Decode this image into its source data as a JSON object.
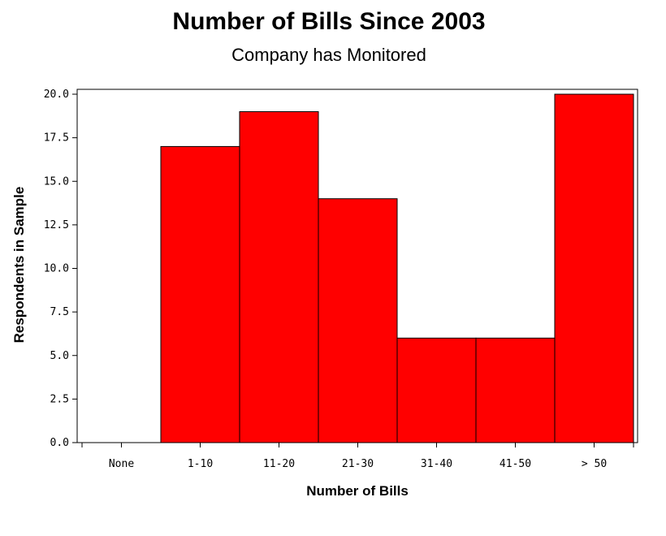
{
  "chart_data": {
    "type": "bar",
    "title": "Number of Bills Since 2003",
    "subtitle": "Company has Monitored",
    "xlabel": "Number of Bills",
    "ylabel": "Respondents in Sample",
    "categories": [
      "None",
      "1-10",
      "11-20",
      "21-30",
      "31-40",
      "41-50",
      "> 50"
    ],
    "values": [
      0,
      17,
      19,
      14,
      6,
      6,
      20
    ],
    "yticks": [
      "0.0",
      "2.5",
      "5.0",
      "7.5",
      "10.0",
      "12.5",
      "15.0",
      "17.5",
      "20.0"
    ],
    "ylim": [
      0,
      20
    ],
    "grid": false,
    "bar_color": "#ff0000",
    "bar_edge_color": "#000000"
  }
}
